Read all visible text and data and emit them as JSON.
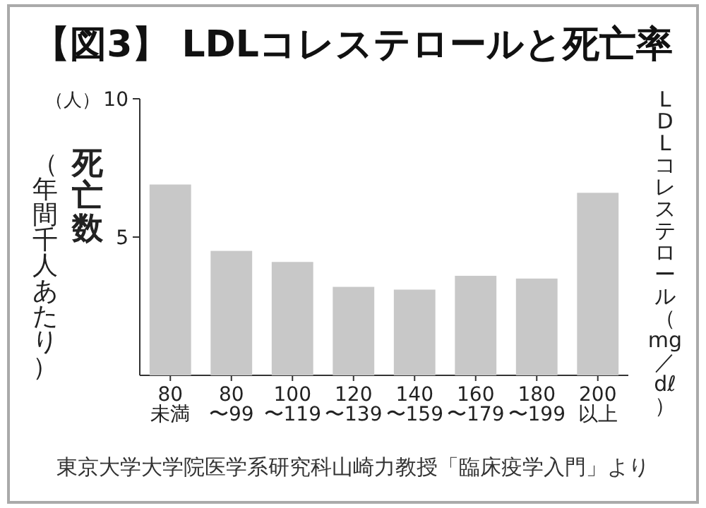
{
  "chart_data": {
    "type": "bar",
    "title": "【図3】 LDLコレステロールと死亡率",
    "ylabel": "死亡数（年間千人あたり）",
    "categories": [
      "80\n未満",
      "80\n〜99",
      "100\n〜119",
      "120\n〜139",
      "140\n〜159",
      "160\n〜179",
      "180\n〜199",
      "200\n以上"
    ],
    "values": [
      6.9,
      4.5,
      4.1,
      3.2,
      3.1,
      3.6,
      3.5,
      6.6
    ],
    "color": "#c8c8c8",
    "ylim": [
      0,
      10
    ],
    "yticks": [
      5,
      10
    ],
    "grid": false,
    "annotations": [
      "（人）",
      "東京大学大学院医学系研究科山崎力教授「臨床疫学入門」より",
      "LDLコレステロール（mg／dℓ）"
    ]
  }
}
